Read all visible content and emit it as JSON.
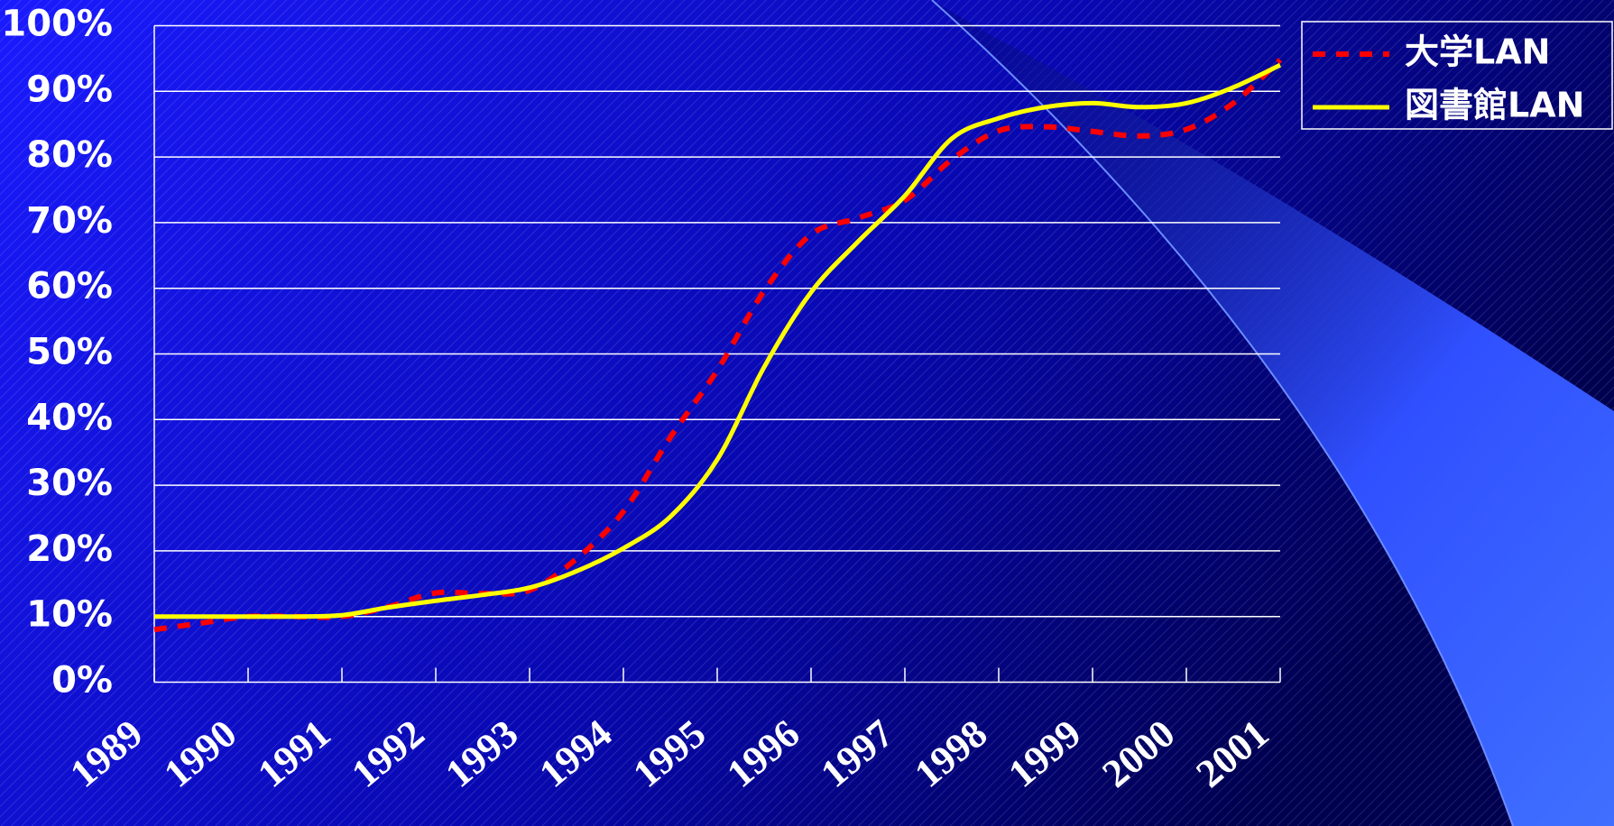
{
  "chart_data": {
    "type": "line",
    "x": [
      1989,
      1989.5,
      1990,
      1990.5,
      1991,
      1991.5,
      1992,
      1992.5,
      1993,
      1993.5,
      1994,
      1994.5,
      1995,
      1995.5,
      1996,
      1996.5,
      1997,
      1997.5,
      1998,
      1998.5,
      1999,
      1999.5,
      2000,
      2000.5,
      2001
    ],
    "xlim": [
      1989,
      2001
    ],
    "xticks": [
      1989,
      1990,
      1991,
      1992,
      1993,
      1994,
      1995,
      1996,
      1997,
      1998,
      1999,
      2000,
      2001
    ],
    "ylim": [
      0,
      100
    ],
    "yticks": [
      {
        "value": 0,
        "label": "0%"
      },
      {
        "value": 10,
        "label": "10%"
      },
      {
        "value": 20,
        "label": "20%"
      },
      {
        "value": 30,
        "label": "30%"
      },
      {
        "value": 40,
        "label": "40%"
      },
      {
        "value": 50,
        "label": "50%"
      },
      {
        "value": 60,
        "label": "60%"
      },
      {
        "value": 70,
        "label": "70%"
      },
      {
        "value": 80,
        "label": "80%"
      },
      {
        "value": 90,
        "label": "90%"
      },
      {
        "value": 100,
        "label": "100%"
      }
    ],
    "grid": true,
    "legend": "upper right",
    "series": [
      {
        "name": "大学LAN",
        "color": "#ff0000",
        "dash": true,
        "values": [
          8,
          9,
          10,
          10,
          10,
          11.5,
          13.6,
          13.5,
          14,
          18.8,
          26,
          37.3,
          47.5,
          59.6,
          68.2,
          70.7,
          73.4,
          79.6,
          84,
          84.6,
          83.9,
          83.2,
          84.2,
          88.2,
          94.8
        ]
      },
      {
        "name": "図書館LAN",
        "color": "#ffff00",
        "dash": false,
        "values": [
          10,
          10,
          10,
          10,
          10.2,
          11.4,
          12.4,
          13.3,
          14.4,
          16.9,
          20.4,
          25.2,
          33.9,
          48,
          59.4,
          67.1,
          74.1,
          82.8,
          85.9,
          87.6,
          88.2,
          87.6,
          88.2,
          90.6,
          94
        ]
      }
    ]
  }
}
